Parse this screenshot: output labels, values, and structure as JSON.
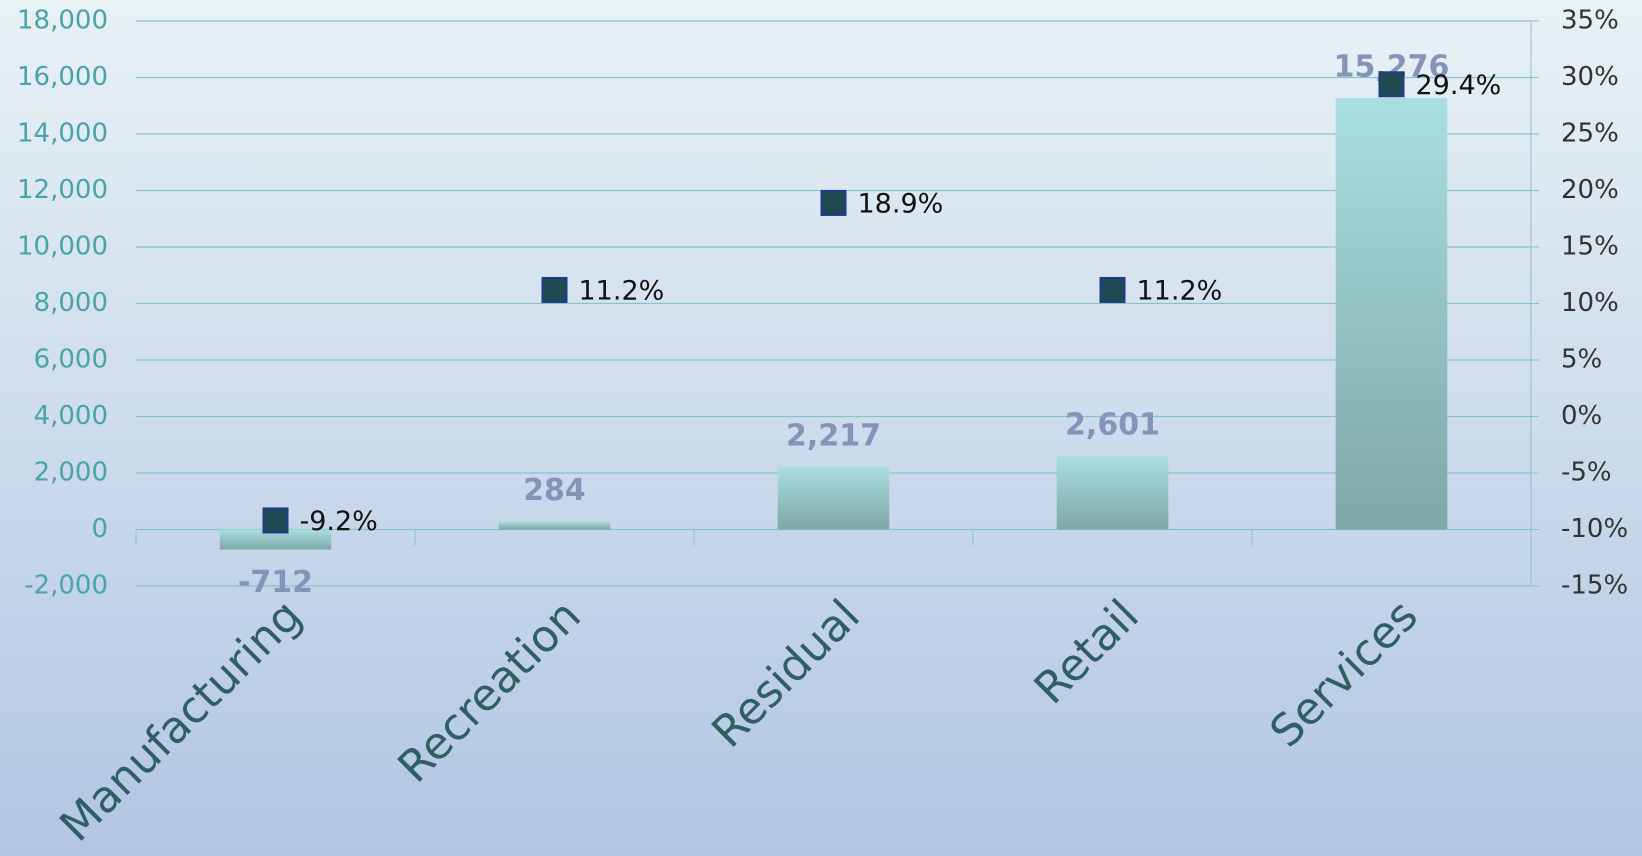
{
  "chart_data": {
    "type": "bar",
    "categories": [
      "Manufacturing",
      "Recreation",
      "Residual",
      "Retail",
      "Services"
    ],
    "series": [
      {
        "color": "#9fd6d8",
        "values": [
          -712,
          284,
          2217,
          2601,
          15276
        ],
        "value_labels": [
          "-712",
          "284",
          "2,217",
          "2,601",
          "15,276"
        ]
      },
      {
        "type": "scatter",
        "axis": "y2",
        "color": "#1f4a52",
        "values": [
          -9.2,
          11.2,
          18.9,
          11.2,
          29.4
        ],
        "value_labels": [
          "-9.2%",
          "11.2%",
          "18.9%",
          "11.2%",
          "29.4%"
        ]
      }
    ],
    "ylim": [
      -2000,
      18000
    ],
    "yticks": [
      {
        "value": -2000,
        "label": "-2,000"
      },
      0,
      {
        "value": 2000,
        "label": "2,000"
      },
      {
        "value": 4000,
        "label": "4,000"
      },
      {
        "value": 6000,
        "label": "6,000"
      },
      {
        "value": 8000,
        "label": "8,000"
      },
      {
        "value": 10000,
        "label": "10,000"
      },
      {
        "value": 12000,
        "label": "12,000"
      },
      {
        "value": 14000,
        "label": "14,000"
      },
      {
        "value": 16000,
        "label": "16,000"
      },
      {
        "value": 18000,
        "label": "18,000"
      }
    ],
    "y2lim": [
      -15,
      35
    ],
    "y2ticks": [
      {
        "value": -15,
        "label": "-15%"
      },
      {
        "value": -10,
        "label": "-10%"
      },
      {
        "value": -5,
        "label": "-5%"
      },
      {
        "value": 0,
        "label": "0%"
      },
      {
        "value": 5,
        "label": "5%"
      },
      {
        "value": 10,
        "label": "10%"
      },
      {
        "value": 15,
        "label": "15%"
      },
      {
        "value": 20,
        "label": "20%"
      },
      {
        "value": 25,
        "label": "25%"
      },
      {
        "value": 30,
        "label": "30%"
      },
      {
        "value": 35,
        "label": "35%"
      }
    ],
    "grid": true
  }
}
